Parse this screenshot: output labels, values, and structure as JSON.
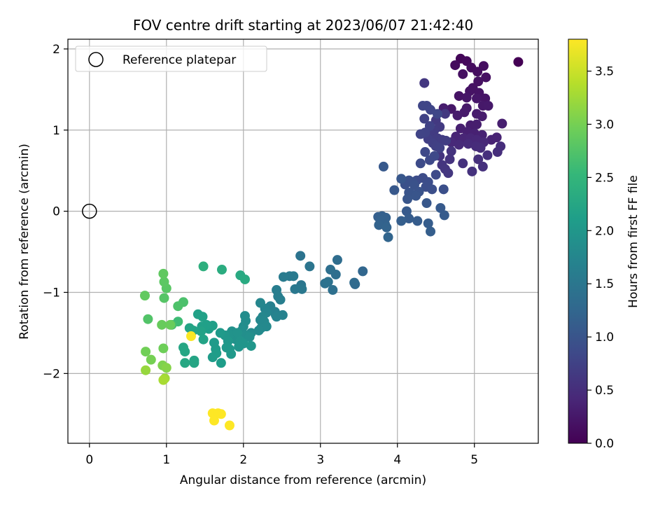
{
  "chart_data": {
    "type": "scatter",
    "title": "FOV centre drift starting at 2023/06/07 21:42:40",
    "xlabel": "Angular distance from reference (arcmin)",
    "ylabel": "Rotation from reference (arcmin)",
    "xlim": [
      -0.28,
      5.83
    ],
    "ylim": [
      -2.86,
      2.12
    ],
    "xticks": [
      0,
      1,
      2,
      3,
      4,
      5
    ],
    "yticks": [
      -2,
      -1,
      0,
      1,
      2
    ],
    "grid": true,
    "legend": {
      "placement": "top-left",
      "entries": [
        "Reference platepar"
      ]
    },
    "reference_point": {
      "x": 0,
      "y": 0,
      "label": "Reference platepar"
    },
    "colorbar": {
      "label": "Hours from first FF file",
      "colormap": "viridis",
      "range": [
        0,
        3.8
      ],
      "ticks": [
        0.0,
        0.5,
        1.0,
        1.5,
        2.0,
        2.5,
        3.0,
        3.5
      ]
    },
    "colors": {
      "viridis": [
        "#440154",
        "#482878",
        "#3e4989",
        "#31688e",
        "#26828e",
        "#1f9e89",
        "#35b779",
        "#6ece58",
        "#b5de2b",
        "#fde725"
      ],
      "grid": "#b0b0b0",
      "axis": "#000000"
    },
    "series": [
      {
        "points": [
          [
            5.57,
            1.84,
            0.0
          ],
          [
            4.82,
            1.88,
            0.05
          ],
          [
            4.9,
            1.85,
            0.08
          ],
          [
            4.75,
            1.8,
            0.1
          ],
          [
            4.96,
            1.77,
            0.12
          ],
          [
            5.04,
            1.72,
            0.13
          ],
          [
            5.12,
            1.79,
            0.14
          ],
          [
            4.85,
            1.69,
            0.15
          ],
          [
            5.15,
            1.65,
            0.16
          ],
          [
            5.05,
            1.6,
            0.17
          ],
          [
            4.98,
            1.52,
            0.18
          ],
          [
            4.94,
            1.48,
            0.19
          ],
          [
            4.8,
            1.42,
            0.2
          ],
          [
            5.06,
            1.46,
            0.2
          ],
          [
            5.14,
            1.39,
            0.21
          ],
          [
            4.9,
            1.4,
            0.22
          ],
          [
            5.03,
            1.39,
            0.23
          ],
          [
            4.7,
            1.26,
            0.24
          ],
          [
            4.9,
            1.27,
            0.25
          ],
          [
            5.11,
            1.3,
            0.25
          ],
          [
            5.18,
            1.3,
            0.26
          ],
          [
            4.87,
            1.22,
            0.27
          ],
          [
            4.78,
            1.18,
            0.28
          ],
          [
            5.03,
            1.2,
            0.28
          ],
          [
            5.1,
            1.17,
            0.29
          ],
          [
            4.6,
            1.27,
            0.3
          ],
          [
            4.95,
            1.06,
            0.3
          ],
          [
            5.03,
            1.07,
            0.31
          ],
          [
            5.36,
            1.08,
            0.32
          ],
          [
            4.82,
            1.02,
            0.33
          ],
          [
            4.91,
            0.98,
            0.34
          ],
          [
            5.0,
            0.96,
            0.35
          ],
          [
            5.1,
            0.94,
            0.36
          ],
          [
            5.22,
            0.88,
            0.37
          ],
          [
            5.29,
            0.91,
            0.38
          ],
          [
            4.76,
            0.92,
            0.39
          ],
          [
            4.86,
            0.9,
            0.4
          ],
          [
            4.95,
            0.9,
            0.41
          ],
          [
            5.03,
            0.88,
            0.42
          ],
          [
            5.12,
            0.85,
            0.43
          ],
          [
            4.7,
            0.85,
            0.44
          ],
          [
            4.8,
            0.82,
            0.45
          ],
          [
            4.92,
            0.83,
            0.46
          ],
          [
            5.02,
            0.8,
            0.47
          ],
          [
            5.08,
            0.78,
            0.48
          ],
          [
            5.34,
            0.8,
            0.49
          ],
          [
            5.3,
            0.73,
            0.5
          ],
          [
            5.17,
            0.69,
            0.51
          ],
          [
            5.05,
            0.64,
            0.52
          ],
          [
            5.11,
            0.55,
            0.53
          ],
          [
            4.85,
            0.59,
            0.54
          ],
          [
            4.97,
            0.49,
            0.55
          ],
          [
            4.68,
            0.64,
            0.56
          ],
          [
            4.7,
            0.74,
            0.57
          ],
          [
            4.55,
            0.68,
            0.58
          ],
          [
            4.58,
            0.57,
            0.59
          ],
          [
            4.62,
            0.52,
            0.6
          ],
          [
            4.66,
            0.47,
            0.61
          ],
          [
            4.35,
            1.58,
            0.62
          ],
          [
            4.62,
            1.2,
            0.63
          ],
          [
            4.5,
            1.12,
            0.64
          ],
          [
            4.55,
            1.04,
            0.65
          ],
          [
            4.48,
            1.0,
            0.66
          ],
          [
            4.44,
            0.95,
            0.67
          ],
          [
            4.52,
            0.9,
            0.68
          ],
          [
            4.58,
            0.88,
            0.69
          ],
          [
            4.63,
            0.87,
            0.7
          ],
          [
            4.4,
            0.89,
            0.71
          ],
          [
            4.46,
            0.84,
            0.72
          ],
          [
            4.5,
            0.8,
            0.73
          ],
          [
            4.55,
            0.78,
            0.74
          ],
          [
            4.35,
            1.14,
            0.75
          ],
          [
            4.42,
            1.05,
            0.76
          ],
          [
            4.36,
            0.97,
            0.77
          ],
          [
            4.3,
            0.95,
            0.78
          ],
          [
            4.38,
            1.3,
            0.79
          ],
          [
            4.33,
            1.3,
            0.8
          ],
          [
            4.43,
            1.25,
            0.81
          ],
          [
            4.52,
            1.2,
            0.82
          ],
          [
            4.36,
            0.73,
            0.83
          ],
          [
            4.48,
            0.68,
            0.84
          ],
          [
            4.42,
            0.63,
            0.85
          ],
          [
            4.5,
            0.45,
            0.86
          ],
          [
            4.3,
            0.59,
            0.87
          ],
          [
            4.33,
            0.41,
            0.88
          ],
          [
            4.25,
            0.38,
            0.89
          ],
          [
            4.4,
            0.36,
            0.9
          ],
          [
            4.37,
            0.3,
            0.91
          ],
          [
            4.45,
            0.27,
            0.92
          ],
          [
            4.6,
            0.27,
            0.93
          ],
          [
            4.2,
            0.36,
            0.94
          ],
          [
            4.15,
            0.38,
            0.95
          ],
          [
            4.1,
            0.33,
            0.96
          ],
          [
            4.22,
            0.32,
            0.97
          ],
          [
            4.28,
            0.24,
            0.98
          ],
          [
            4.15,
            0.23,
            0.99
          ],
          [
            4.18,
            0.21,
            1.0
          ],
          [
            4.24,
            0.19,
            1.01
          ],
          [
            4.13,
            0.15,
            1.02
          ],
          [
            4.38,
            0.1,
            1.03
          ],
          [
            4.05,
            0.4,
            1.04
          ],
          [
            3.96,
            0.26,
            1.05
          ],
          [
            3.82,
            0.55,
            1.06
          ],
          [
            4.12,
            0.0,
            1.07
          ],
          [
            4.56,
            0.04,
            1.08
          ],
          [
            4.61,
            -0.05,
            1.09
          ],
          [
            4.15,
            -0.09,
            1.1
          ],
          [
            4.26,
            -0.12,
            1.11
          ],
          [
            4.4,
            -0.15,
            1.12
          ],
          [
            4.43,
            -0.25,
            1.13
          ],
          [
            4.05,
            -0.12,
            1.14
          ],
          [
            3.75,
            -0.07,
            1.15
          ],
          [
            3.8,
            -0.06,
            1.16
          ],
          [
            3.85,
            -0.08,
            1.17
          ],
          [
            3.78,
            -0.12,
            1.18
          ],
          [
            3.84,
            -0.16,
            1.19
          ],
          [
            3.76,
            -0.17,
            1.2
          ],
          [
            3.86,
            -0.2,
            1.21
          ],
          [
            3.88,
            -0.32,
            1.22
          ],
          [
            3.55,
            -0.74,
            1.25
          ],
          [
            3.45,
            -0.9,
            1.3
          ],
          [
            3.44,
            -0.88,
            1.32
          ],
          [
            3.22,
            -0.6,
            1.35
          ],
          [
            3.2,
            -0.78,
            1.37
          ],
          [
            3.13,
            -0.72,
            1.38
          ],
          [
            3.16,
            -0.97,
            1.4
          ],
          [
            3.06,
            -0.89,
            1.42
          ],
          [
            3.1,
            -0.87,
            1.43
          ],
          [
            2.74,
            -0.55,
            1.45
          ],
          [
            2.86,
            -0.68,
            1.47
          ],
          [
            2.75,
            -0.91,
            1.5
          ],
          [
            2.76,
            -0.96,
            1.52
          ],
          [
            2.67,
            -0.96,
            1.53
          ],
          [
            2.6,
            -0.8,
            1.55
          ],
          [
            2.65,
            -0.8,
            1.56
          ],
          [
            2.52,
            -0.81,
            1.58
          ],
          [
            2.43,
            -0.97,
            1.6
          ],
          [
            2.45,
            -1.05,
            1.62
          ],
          [
            2.48,
            -1.09,
            1.63
          ],
          [
            2.35,
            -1.17,
            1.65
          ],
          [
            2.41,
            -1.24,
            1.67
          ],
          [
            2.42,
            -1.28,
            1.68
          ],
          [
            2.51,
            -1.28,
            1.69
          ],
          [
            2.43,
            -1.3,
            1.7
          ],
          [
            2.28,
            -1.2,
            1.72
          ],
          [
            2.3,
            -1.25,
            1.73
          ],
          [
            2.22,
            -1.13,
            1.75
          ],
          [
            2.25,
            -1.3,
            1.76
          ],
          [
            2.22,
            -1.34,
            1.77
          ],
          [
            2.27,
            -1.36,
            1.78
          ],
          [
            2.3,
            -1.42,
            1.79
          ],
          [
            2.23,
            -1.44,
            1.8
          ],
          [
            2.2,
            -1.47,
            1.81
          ],
          [
            2.1,
            -1.5,
            1.82
          ],
          [
            2.02,
            -1.29,
            1.84
          ],
          [
            2.03,
            -1.35,
            1.85
          ],
          [
            2.0,
            -1.42,
            1.86
          ],
          [
            1.98,
            -1.47,
            1.87
          ],
          [
            1.95,
            -1.52,
            1.88
          ],
          [
            2.03,
            -1.53,
            1.89
          ],
          [
            2.08,
            -1.55,
            1.9
          ],
          [
            1.9,
            -1.58,
            1.91
          ],
          [
            1.85,
            -1.48,
            1.92
          ],
          [
            1.88,
            -1.55,
            1.93
          ],
          [
            1.82,
            -1.52,
            1.94
          ],
          [
            1.92,
            -1.5,
            1.95
          ],
          [
            1.96,
            -1.6,
            1.96
          ],
          [
            2.0,
            -1.63,
            1.97
          ],
          [
            1.94,
            -1.67,
            1.98
          ],
          [
            2.1,
            -1.66,
            1.99
          ],
          [
            1.76,
            -1.53,
            2.0
          ],
          [
            1.8,
            -1.6,
            2.01
          ],
          [
            1.82,
            -1.7,
            2.02
          ],
          [
            1.78,
            -1.68,
            2.03
          ],
          [
            1.84,
            -1.76,
            2.04
          ],
          [
            1.7,
            -1.5,
            2.05
          ],
          [
            1.62,
            -1.62,
            2.06
          ],
          [
            1.64,
            -1.7,
            2.07
          ],
          [
            1.6,
            -1.8,
            2.08
          ],
          [
            1.65,
            -1.75,
            2.09
          ],
          [
            1.71,
            -1.87,
            2.1
          ],
          [
            1.55,
            -1.45,
            2.12
          ],
          [
            1.6,
            -1.41,
            2.13
          ],
          [
            1.52,
            -1.4,
            2.14
          ],
          [
            1.46,
            -1.42,
            2.15
          ],
          [
            1.47,
            -1.3,
            2.16
          ],
          [
            1.41,
            -1.27,
            2.17
          ],
          [
            1.45,
            -1.48,
            2.18
          ],
          [
            1.48,
            -1.58,
            2.19
          ],
          [
            1.35,
            -1.47,
            2.2
          ],
          [
            1.3,
            -1.44,
            2.21
          ],
          [
            1.36,
            -1.84,
            2.22
          ],
          [
            1.36,
            -1.87,
            2.23
          ],
          [
            1.24,
            -1.73,
            2.24
          ],
          [
            1.22,
            -1.68,
            2.25
          ],
          [
            1.24,
            -1.87,
            2.26
          ],
          [
            1.96,
            -0.79,
            2.3
          ],
          [
            2.02,
            -0.84,
            2.32
          ],
          [
            1.72,
            -0.72,
            2.35
          ],
          [
            1.48,
            -0.68,
            2.4
          ],
          [
            1.15,
            -1.36,
            2.6
          ],
          [
            1.07,
            -1.4,
            2.65
          ],
          [
            1.22,
            -1.12,
            2.7
          ],
          [
            1.15,
            -1.17,
            2.72
          ],
          [
            0.76,
            -1.33,
            2.75
          ],
          [
            0.97,
            -1.07,
            2.78
          ],
          [
            1.0,
            -0.95,
            2.8
          ],
          [
            0.97,
            -0.87,
            2.82
          ],
          [
            0.96,
            -0.77,
            2.85
          ],
          [
            0.72,
            -1.04,
            2.87
          ],
          [
            0.94,
            -1.4,
            2.9
          ],
          [
            1.05,
            -1.4,
            2.92
          ],
          [
            0.96,
            -1.69,
            2.95
          ],
          [
            0.73,
            -1.73,
            2.97
          ],
          [
            0.8,
            -1.83,
            3.0
          ],
          [
            0.95,
            -1.9,
            3.05
          ],
          [
            1.0,
            -1.93,
            3.1
          ],
          [
            0.73,
            -1.96,
            3.2
          ],
          [
            0.98,
            -2.06,
            3.25
          ],
          [
            0.96,
            -2.08,
            3.3
          ],
          [
            1.32,
            -1.54,
            3.78
          ],
          [
            1.6,
            -2.49,
            3.8
          ],
          [
            1.67,
            -2.49,
            3.8
          ],
          [
            1.71,
            -2.5,
            3.8
          ],
          [
            1.62,
            -2.58,
            3.8
          ],
          [
            1.82,
            -2.64,
            3.8
          ]
        ]
      }
    ]
  }
}
